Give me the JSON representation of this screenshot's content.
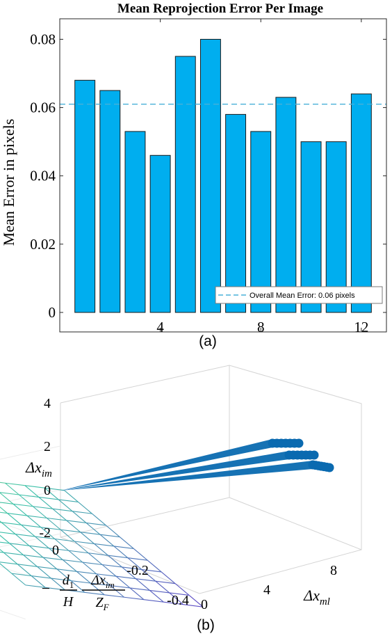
{
  "chart_data": [
    {
      "type": "bar",
      "panel_label": "(a)",
      "title": "Mean Reprojection Error Per Image",
      "ylabel": "Mean Error in pixels",
      "xlabel": "",
      "categories": [
        1,
        2,
        3,
        4,
        5,
        6,
        7,
        8,
        9,
        10,
        11,
        12
      ],
      "values": [
        0.068,
        0.065,
        0.053,
        0.046,
        0.075,
        0.08,
        0.058,
        0.053,
        0.063,
        0.05,
        0.05,
        0.064
      ],
      "xticks": [
        4,
        8,
        12
      ],
      "yticks": [
        0,
        0.02,
        0.04,
        0.06,
        0.08
      ],
      "ytick_labels": [
        "0",
        "0.02",
        "0.04",
        "0.06",
        "0.08"
      ],
      "xlim": [
        0,
        13
      ],
      "ylim": [
        0,
        0.086
      ],
      "mean_line": {
        "value": 0.061,
        "legend": "Overall Mean Error: 0.06 pixels"
      },
      "legend_position": "bottom-right",
      "grid": false,
      "colors": {
        "bar": "#00AEEF",
        "bar_edge": "#1a1a1a",
        "mean_line": "#48B0D8",
        "axis": "#262626"
      }
    },
    {
      "type": "scatter3d",
      "panel_label": "(b)",
      "surface": "plane",
      "zlabel": "Δx_im",
      "xaxis_tick_labels": [
        "0",
        "4",
        "8"
      ],
      "yaxis_tick_labels": [
        "0",
        "-0.2",
        "-0.4"
      ],
      "zaxis_tick_labels": [
        "4",
        "2",
        "0",
        "-2"
      ],
      "labels": {
        "z": {
          "base": "Δx",
          "sub": "im"
        },
        "x": {
          "base": "Δx",
          "sub": "ml"
        },
        "y": {
          "minus": "−",
          "frac1_num": "d",
          "frac1_num_sub": "1",
          "frac1_den": "H",
          "frac2_num": "Δx",
          "frac2_num_sub": "im",
          "frac2_den": "Z",
          "frac2_den_sub": "F"
        }
      },
      "x_range": [
        0,
        10
      ],
      "y_range": [
        0,
        -0.45
      ],
      "z_range": [
        -2,
        4
      ],
      "colors": {
        "points": "#0A6AB0",
        "surface_low": "#5C4CC4",
        "surface_mid": "#3CC4A8",
        "surface_high": "#E8D25A"
      }
    }
  ]
}
